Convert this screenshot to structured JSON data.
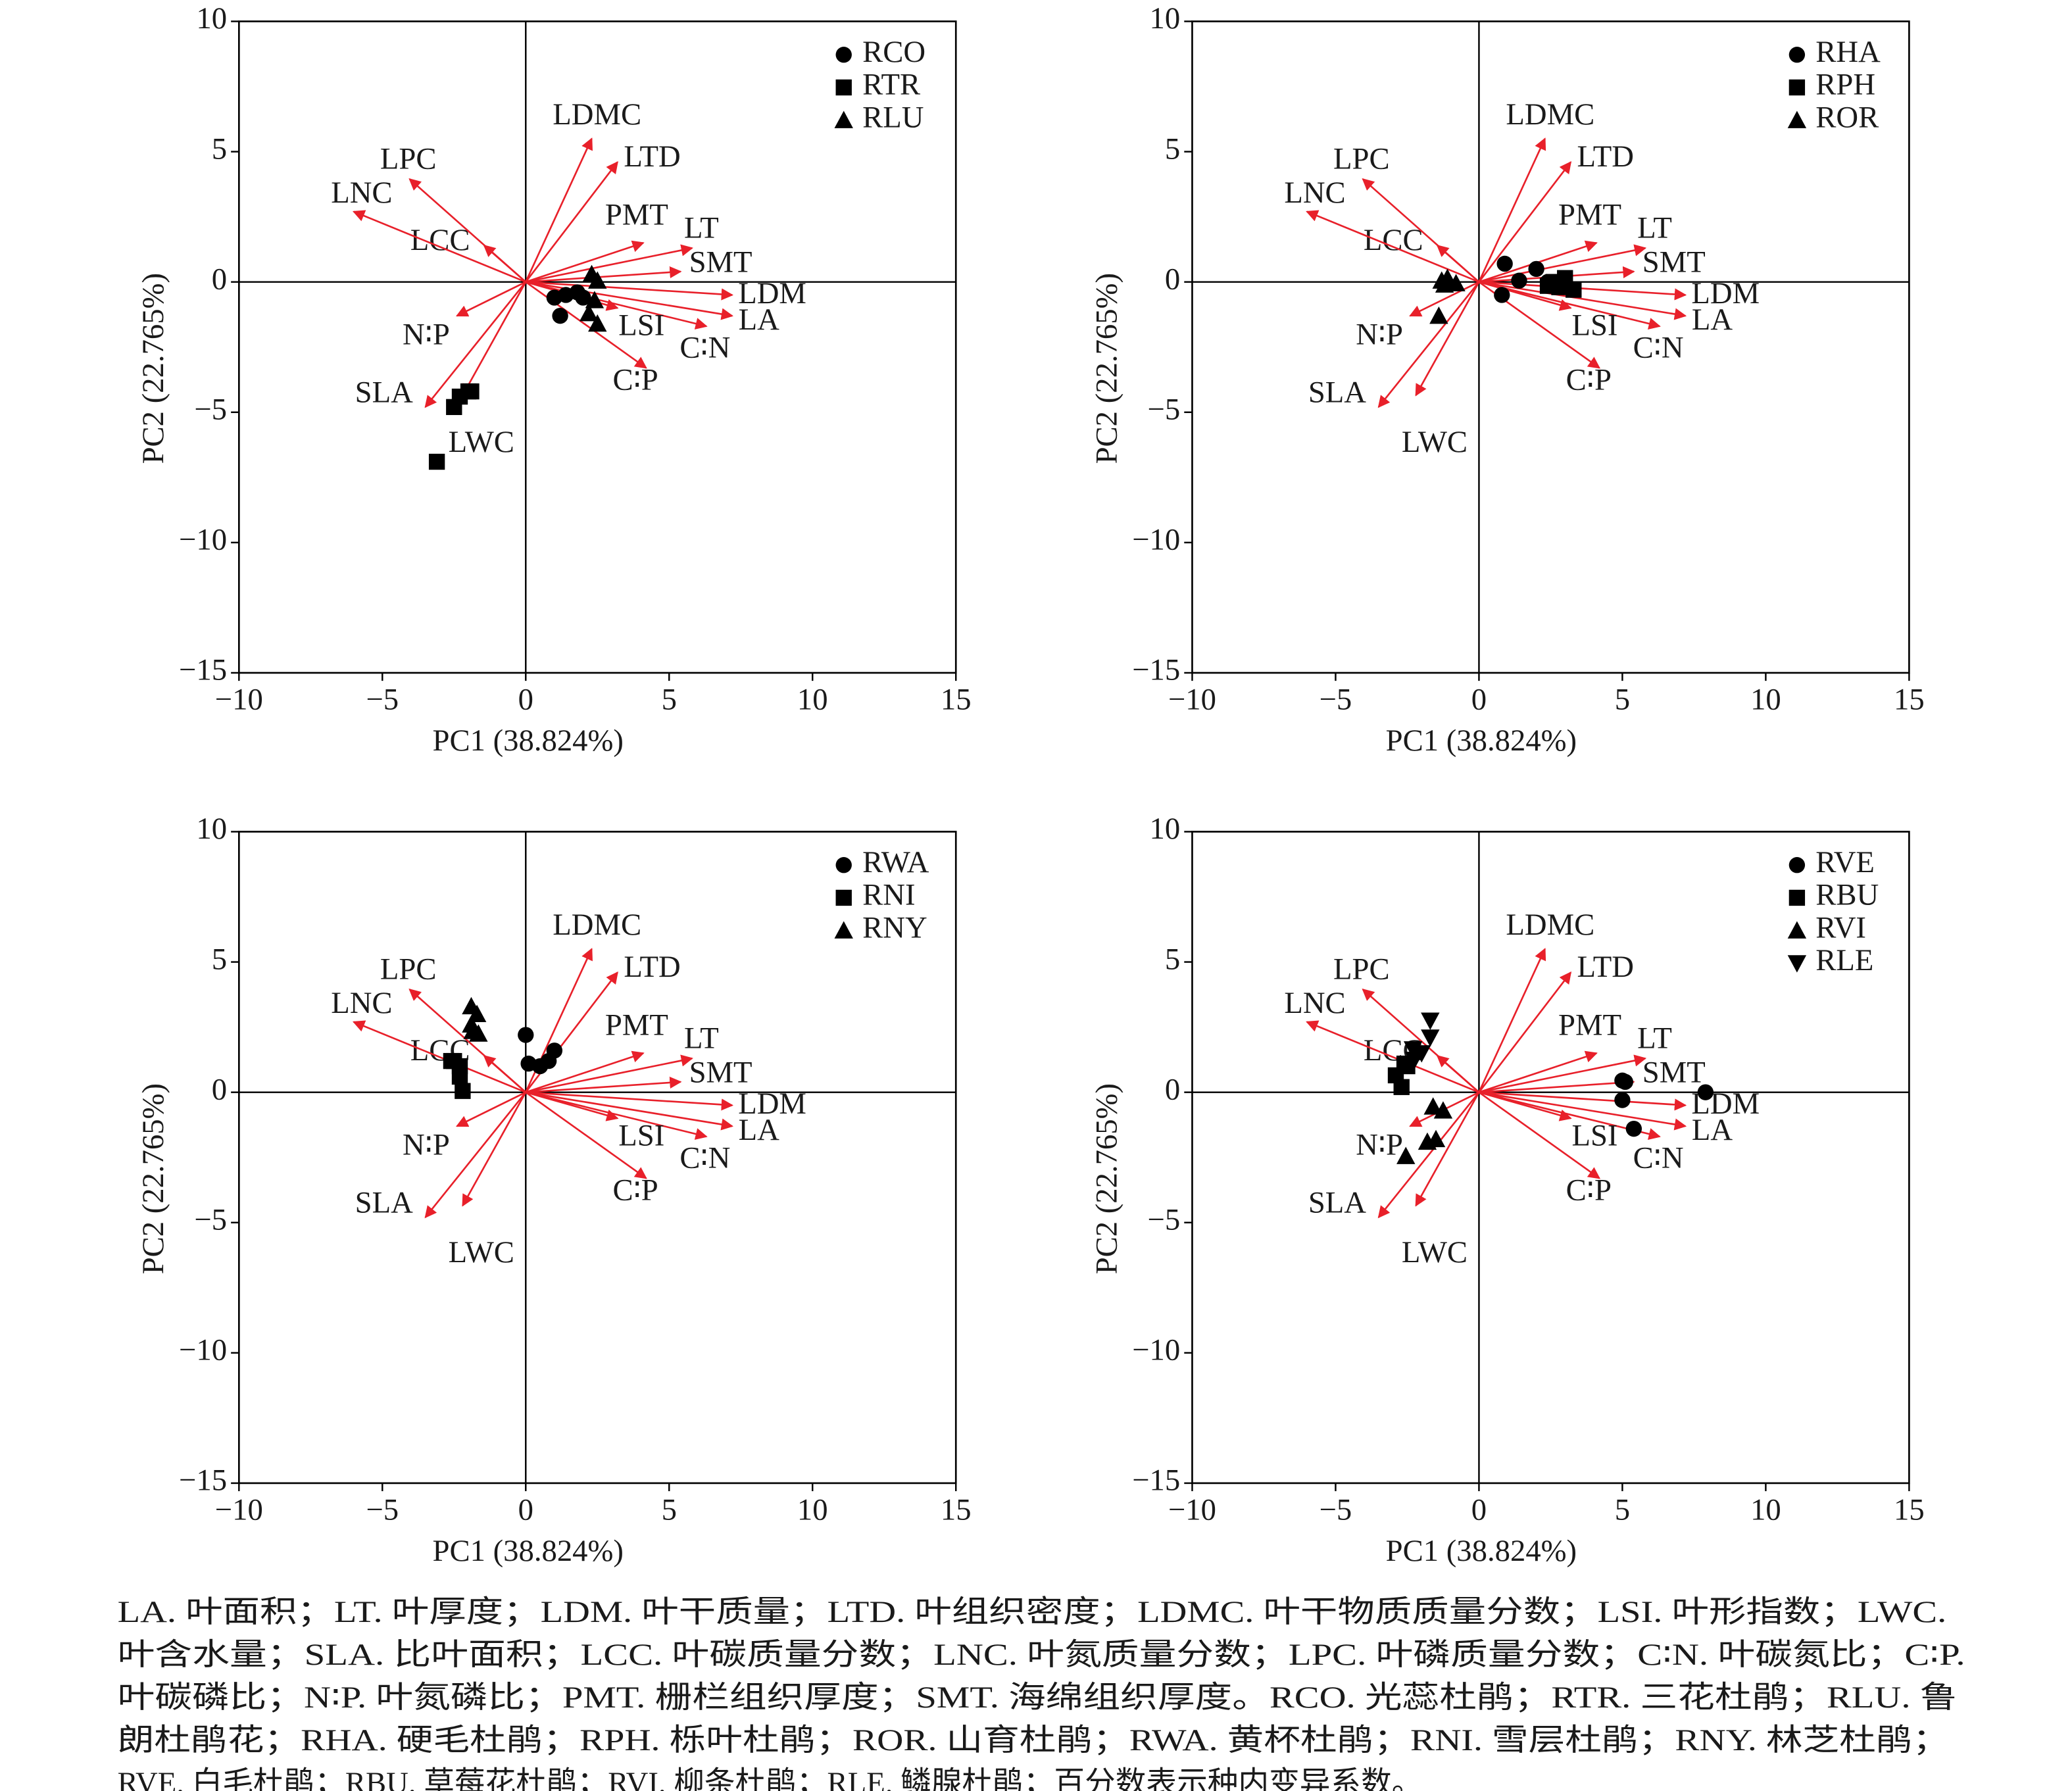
{
  "chart_data": [
    {
      "type": "scatter",
      "x_label": "PC1 (38.824%)",
      "y_label": "PC2 (22.765%)",
      "xlim": [
        -10,
        15
      ],
      "xticks": [
        {
          "value": -10,
          "label": "−10"
        },
        {
          "value": -5,
          "label": "−5"
        },
        0,
        5,
        10,
        15
      ],
      "ylim": [
        -15,
        10
      ],
      "yticks": [
        {
          "value": -15,
          "label": "−15"
        },
        {
          "value": -10,
          "label": "−10"
        },
        {
          "value": -5,
          "label": "−5"
        },
        0,
        5,
        10
      ],
      "arrow_color": "#e8202a",
      "legend": "upper right",
      "arrows": [
        {
          "name": "LDMC",
          "x": 2.3,
          "y": 5.5
        },
        {
          "name": "LTD",
          "x": 3.2,
          "y": 4.6
        },
        {
          "name": "PMT",
          "x": 4.1,
          "y": 1.5
        },
        {
          "name": "LT",
          "x": 5.8,
          "y": 1.3
        },
        {
          "name": "SMT",
          "x": 5.4,
          "y": 0.4
        },
        {
          "name": "LDM",
          "x": 7.2,
          "y": -0.5
        },
        {
          "name": "LA",
          "x": 7.2,
          "y": -1.3
        },
        {
          "name": "C∶N",
          "x": 6.3,
          "y": -1.7
        },
        {
          "name": "LSI",
          "x": 3.2,
          "y": -1.0
        },
        {
          "name": "C∶P",
          "x": 4.2,
          "y": -3.3
        },
        {
          "name": "LWC",
          "x": -2.2,
          "y": -4.35
        },
        {
          "name": "SLA",
          "x": -3.5,
          "y": -4.8
        },
        {
          "name": "N∶P",
          "x": -2.4,
          "y": -1.3
        },
        {
          "name": "LCC",
          "x": -1.45,
          "y": 1.4
        },
        {
          "name": "LPC",
          "x": -4.05,
          "y": 3.95
        },
        {
          "name": "LNC",
          "x": -6.0,
          "y": 2.7
        }
      ],
      "series": [
        {
          "name": "RCO",
          "marker": "circle",
          "color": "#000000",
          "x": [
            1.2,
            1.0,
            1.4,
            1.8,
            2.0
          ],
          "values": [
            -1.3,
            -0.6,
            -0.5,
            -0.4,
            -0.6
          ]
        },
        {
          "name": "RTR",
          "marker": "square",
          "color": "#000000",
          "x": [
            -3.1,
            -2.5,
            -2.3,
            -2.0,
            -1.9
          ],
          "values": [
            -6.9,
            -4.8,
            -4.4,
            -4.2,
            -4.2
          ]
        },
        {
          "name": "RLU",
          "marker": "triangle",
          "color": "#000000",
          "x": [
            2.3,
            2.5,
            2.4,
            2.5,
            2.2
          ],
          "values": [
            0.3,
            0.05,
            -0.7,
            -1.6,
            -1.2
          ]
        }
      ]
    },
    {
      "type": "scatter",
      "x_label": "PC1 (38.824%)",
      "y_label": "PC2 (22.765%)",
      "xlim": [
        -10,
        15
      ],
      "xticks": [
        {
          "value": -10,
          "label": "−10"
        },
        {
          "value": -5,
          "label": "−5"
        },
        0,
        5,
        10,
        15
      ],
      "ylim": [
        -15,
        10
      ],
      "yticks": [
        {
          "value": -15,
          "label": "−15"
        },
        {
          "value": -10,
          "label": "−10"
        },
        {
          "value": -5,
          "label": "−5"
        },
        0,
        5,
        10
      ],
      "arrow_color": "#e8202a",
      "legend": "upper right",
      "arrows": [
        {
          "name": "LDMC",
          "x": 2.3,
          "y": 5.5
        },
        {
          "name": "LTD",
          "x": 3.2,
          "y": 4.6
        },
        {
          "name": "PMT",
          "x": 4.1,
          "y": 1.5
        },
        {
          "name": "LT",
          "x": 5.8,
          "y": 1.3
        },
        {
          "name": "SMT",
          "x": 5.4,
          "y": 0.4
        },
        {
          "name": "LDM",
          "x": 7.2,
          "y": -0.5
        },
        {
          "name": "LA",
          "x": 7.2,
          "y": -1.3
        },
        {
          "name": "C∶N",
          "x": 6.3,
          "y": -1.7
        },
        {
          "name": "LSI",
          "x": 3.2,
          "y": -1.0
        },
        {
          "name": "C∶P",
          "x": 4.2,
          "y": -3.3
        },
        {
          "name": "LWC",
          "x": -2.2,
          "y": -4.35
        },
        {
          "name": "SLA",
          "x": -3.5,
          "y": -4.8
        },
        {
          "name": "N∶P",
          "x": -2.4,
          "y": -1.3
        },
        {
          "name": "LCC",
          "x": -1.45,
          "y": 1.4
        },
        {
          "name": "LPC",
          "x": -4.05,
          "y": 3.95
        },
        {
          "name": "LNC",
          "x": -6.0,
          "y": 2.7
        }
      ],
      "series": [
        {
          "name": "RHA",
          "marker": "circle",
          "color": "#000000",
          "x": [
            0.9,
            0.8,
            2.0,
            1.4,
            2.4
          ],
          "values": [
            0.7,
            -0.5,
            0.5,
            0.05,
            0
          ]
        },
        {
          "name": "RPH",
          "marker": "square",
          "color": "#000000",
          "x": [
            2.6,
            3.0,
            2.4,
            3.3,
            2.8
          ],
          "values": [
            0,
            0.15,
            -0.15,
            -0.3,
            -0.2
          ]
        },
        {
          "name": "ROR",
          "marker": "triangle",
          "color": "#000000",
          "x": [
            -1.3,
            -1.1,
            -0.8,
            -1.4,
            -1.2
          ],
          "values": [
            0.05,
            0.15,
            -0.05,
            -1.3,
            -0.1
          ]
        }
      ]
    },
    {
      "type": "scatter",
      "x_label": "PC1 (38.824%)",
      "y_label": "PC2 (22.765%)",
      "xlim": [
        -10,
        15
      ],
      "xticks": [
        {
          "value": -10,
          "label": "−10"
        },
        {
          "value": -5,
          "label": "−5"
        },
        0,
        5,
        10,
        15
      ],
      "ylim": [
        -15,
        10
      ],
      "yticks": [
        {
          "value": -15,
          "label": "−15"
        },
        {
          "value": -10,
          "label": "−10"
        },
        {
          "value": -5,
          "label": "−5"
        },
        0,
        5,
        10
      ],
      "arrow_color": "#e8202a",
      "legend": "upper right",
      "arrows": [
        {
          "name": "LDMC",
          "x": 2.3,
          "y": 5.5
        },
        {
          "name": "LTD",
          "x": 3.2,
          "y": 4.6
        },
        {
          "name": "PMT",
          "x": 4.1,
          "y": 1.5
        },
        {
          "name": "LT",
          "x": 5.8,
          "y": 1.3
        },
        {
          "name": "SMT",
          "x": 5.4,
          "y": 0.4
        },
        {
          "name": "LDM",
          "x": 7.2,
          "y": -0.5
        },
        {
          "name": "LA",
          "x": 7.2,
          "y": -1.3
        },
        {
          "name": "C∶N",
          "x": 6.3,
          "y": -1.7
        },
        {
          "name": "LSI",
          "x": 3.2,
          "y": -1.0
        },
        {
          "name": "C∶P",
          "x": 4.2,
          "y": -3.3
        },
        {
          "name": "LWC",
          "x": -2.2,
          "y": -4.35
        },
        {
          "name": "SLA",
          "x": -3.5,
          "y": -4.8
        },
        {
          "name": "N∶P",
          "x": -2.4,
          "y": -1.3
        },
        {
          "name": "LCC",
          "x": -1.45,
          "y": 1.4
        },
        {
          "name": "LPC",
          "x": -4.05,
          "y": 3.95
        },
        {
          "name": "LNC",
          "x": -6.0,
          "y": 2.7
        }
      ],
      "series": [
        {
          "name": "RWA",
          "marker": "circle",
          "color": "#000000",
          "x": [
            0,
            0.1,
            0.5,
            1.0,
            0.8
          ],
          "values": [
            2.2,
            1.1,
            1.0,
            1.6,
            1.2
          ]
        },
        {
          "name": "RNI",
          "marker": "square",
          "color": "#000000",
          "x": [
            -2.6,
            -2.3,
            -2.3,
            -2.2,
            -2.5
          ],
          "values": [
            1.2,
            1.0,
            0.6,
            0.05,
            1.2
          ]
        },
        {
          "name": "RNY",
          "marker": "triangle",
          "color": "#000000",
          "x": [
            -1.9,
            -1.7,
            -1.85,
            -1.65,
            -1.9
          ],
          "values": [
            3.3,
            3.0,
            2.35,
            2.25,
            2.6
          ]
        }
      ]
    },
    {
      "type": "scatter",
      "x_label": "PC1 (38.824%)",
      "y_label": "PC2 (22.765%)",
      "xlim": [
        -10,
        15
      ],
      "xticks": [
        {
          "value": -10,
          "label": "−10"
        },
        {
          "value": -5,
          "label": "−5"
        },
        0,
        5,
        10,
        15
      ],
      "ylim": [
        -15,
        10
      ],
      "yticks": [
        {
          "value": -15,
          "label": "−15"
        },
        {
          "value": -10,
          "label": "−10"
        },
        {
          "value": -5,
          "label": "−5"
        },
        0,
        5,
        10
      ],
      "arrow_color": "#e8202a",
      "legend": "upper right",
      "arrows": [
        {
          "name": "LDMC",
          "x": 2.3,
          "y": 5.5
        },
        {
          "name": "LTD",
          "x": 3.2,
          "y": 4.6
        },
        {
          "name": "PMT",
          "x": 4.1,
          "y": 1.5
        },
        {
          "name": "LT",
          "x": 5.8,
          "y": 1.3
        },
        {
          "name": "SMT",
          "x": 5.4,
          "y": 0.4
        },
        {
          "name": "LDM",
          "x": 7.2,
          "y": -0.5
        },
        {
          "name": "LA",
          "x": 7.2,
          "y": -1.3
        },
        {
          "name": "C∶N",
          "x": 6.3,
          "y": -1.7
        },
        {
          "name": "LSI",
          "x": 3.2,
          "y": -1.0
        },
        {
          "name": "C∶P",
          "x": 4.2,
          "y": -3.3
        },
        {
          "name": "LWC",
          "x": -2.2,
          "y": -4.35
        },
        {
          "name": "SLA",
          "x": -3.5,
          "y": -4.8
        },
        {
          "name": "N∶P",
          "x": -2.4,
          "y": -1.3
        },
        {
          "name": "LCC",
          "x": -1.45,
          "y": 1.4
        },
        {
          "name": "LPC",
          "x": -4.05,
          "y": 3.95
        },
        {
          "name": "LNC",
          "x": -6.0,
          "y": 2.7
        }
      ],
      "series": [
        {
          "name": "RVE",
          "marker": "circle",
          "color": "#000000",
          "x": [
            7.9,
            5.0,
            5.0,
            5.4,
            5.1
          ],
          "values": [
            0,
            0.45,
            -0.3,
            -1.4,
            0.4
          ]
        },
        {
          "name": "RBU",
          "marker": "square",
          "color": "#000000",
          "x": [
            -2.9,
            -2.7,
            -2.6,
            -2.5
          ],
          "values": [
            0.65,
            0.2,
            1.1,
            1.0
          ]
        },
        {
          "name": "RVI",
          "marker": "triangle",
          "color": "#000000",
          "x": [
            -1.6,
            -1.25,
            -1.5,
            -2.55,
            -1.8
          ],
          "values": [
            -0.55,
            -0.7,
            -1.8,
            -2.45,
            -1.9
          ]
        },
        {
          "name": "RLE",
          "marker": "triangle-down",
          "color": "#000000",
          "x": [
            -1.7,
            -1.7,
            -2.3,
            -2.25,
            -2.0
          ],
          "values": [
            2.75,
            2.1,
            1.65,
            1.25,
            1.5
          ]
        }
      ]
    }
  ],
  "caption": [
    "LA. 叶面积；LT. 叶厚度；LDM. 叶干质量；LTD. 叶组织密度；LDMC. 叶干物质质量分数；LSI. 叶形指数；LWC.",
    "叶含水量；SLA. 比叶面积；LCC. 叶碳质量分数；LNC. 叶氮质量分数；LPC. 叶磷质量分数；C∶N. 叶碳氮比；C∶P.",
    "叶碳磷比；N∶P. 叶氮磷比；PMT. 栅栏组织厚度；SMT. 海绵组织厚度。RCO. 光蕊杜鹃；RTR. 三花杜鹃；RLU. 鲁",
    "朗杜鹃花；RHA. 硬毛杜鹃；RPH. 栎叶杜鹃；ROR. 山育杜鹃；RWA. 黄杯杜鹃；RNI. 雪层杜鹃；RNY. 林芝杜鹃；",
    "RVE. 白毛杜鹃；RBU. 草莓花杜鹃；RVI. 柳条杜鹃；RLE. 鳞腺杜鹃；百分数表示种内变异系数。"
  ]
}
